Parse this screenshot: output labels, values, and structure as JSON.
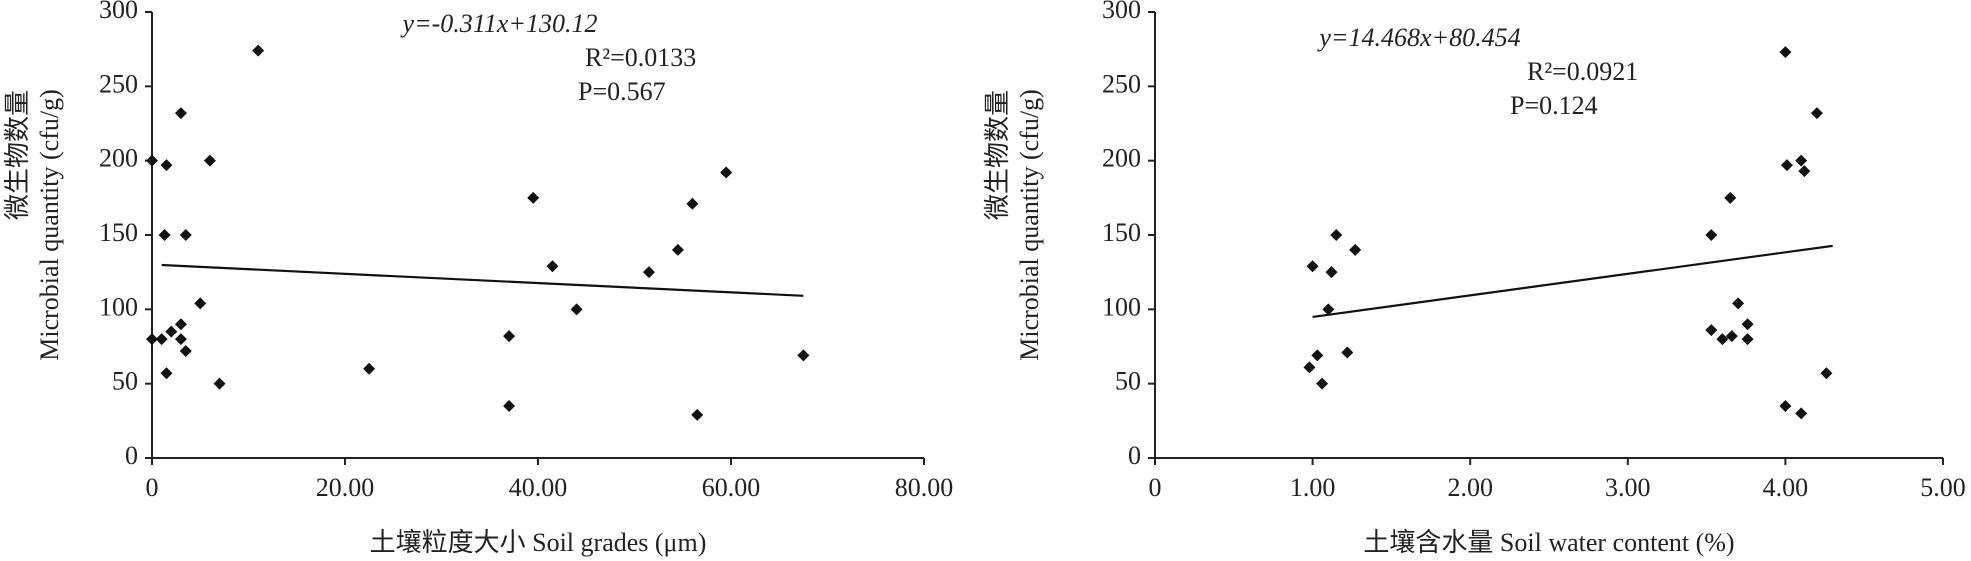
{
  "chart_data": [
    {
      "type": "scatter",
      "xlabel": "土壤粒度大小 Soil grades (μm)",
      "ylabel_cn": "微生物数量",
      "ylabel": "Microbial quantity (cfu/g)",
      "annotations": [
        "y=-0.311x+130.12",
        "R²=0.0133",
        "P=0.567"
      ],
      "color": "#111111",
      "x": [
        0,
        0,
        1.0,
        1.5,
        1.3,
        1.5,
        2,
        3,
        3,
        3,
        3.5,
        3.5,
        5,
        6,
        7,
        11,
        22.5,
        37,
        37,
        39.5,
        41.5,
        44,
        51.5,
        54.5,
        56,
        56.5,
        59.5,
        67.5
      ],
      "values": [
        200,
        80,
        80,
        57,
        150,
        197,
        85,
        232,
        90,
        80,
        72,
        150,
        104,
        200,
        50,
        274,
        60,
        82,
        35,
        175,
        129,
        100,
        125,
        140,
        171,
        29,
        192,
        69
      ],
      "trendline": {
        "x": [
          1,
          67.5
        ],
        "y": [
          129.8,
          109.1
        ]
      },
      "xlim": [
        0,
        80
      ],
      "ylim": [
        0,
        300
      ],
      "xticks": [
        0,
        {
          "value": 20,
          "label": "20.00"
        },
        {
          "value": 40,
          "label": "40.00"
        },
        {
          "value": 60,
          "label": "60.00"
        },
        {
          "value": 80,
          "label": "80.00"
        }
      ],
      "yticks": [
        0,
        50,
        100,
        150,
        200,
        250,
        300
      ]
    },
    {
      "type": "scatter",
      "xlabel": "土壤含水量 Soil water content (%)",
      "ylabel_cn": "微生物数量",
      "ylabel": "Microbial quantity (cfu/g)",
      "annotations": [
        "y=14.468x+80.454",
        "R²=0.0921",
        "P=0.124"
      ],
      "color": "#111111",
      "x": [
        1.0,
        0.98,
        1.03,
        1.06,
        1.1,
        1.12,
        1.15,
        1.22,
        1.27,
        3.53,
        3.53,
        3.6,
        3.65,
        3.66,
        3.7,
        3.76,
        3.76,
        4.0,
        4.01,
        4.0,
        4.1,
        4.1,
        4.12,
        4.2,
        4.26
      ],
      "values": [
        129,
        61,
        69,
        50,
        100,
        125,
        150,
        71,
        140,
        150,
        86,
        80,
        175,
        82,
        104,
        80,
        90,
        273,
        197,
        35,
        200,
        30,
        193,
        232,
        57
      ],
      "trendline": {
        "x": [
          1,
          4.3
        ],
        "y": [
          94.9,
          142.7
        ]
      },
      "xlim": [
        0,
        5
      ],
      "ylim": [
        0,
        300
      ],
      "xticks": [
        0,
        {
          "value": 1,
          "label": "1.00"
        },
        {
          "value": 2,
          "label": "2.00"
        },
        {
          "value": 3,
          "label": "3.00"
        },
        {
          "value": 4,
          "label": "4.00"
        },
        {
          "value": 5,
          "label": "5.00"
        }
      ],
      "yticks": [
        0,
        50,
        100,
        150,
        200,
        250,
        300
      ]
    }
  ]
}
